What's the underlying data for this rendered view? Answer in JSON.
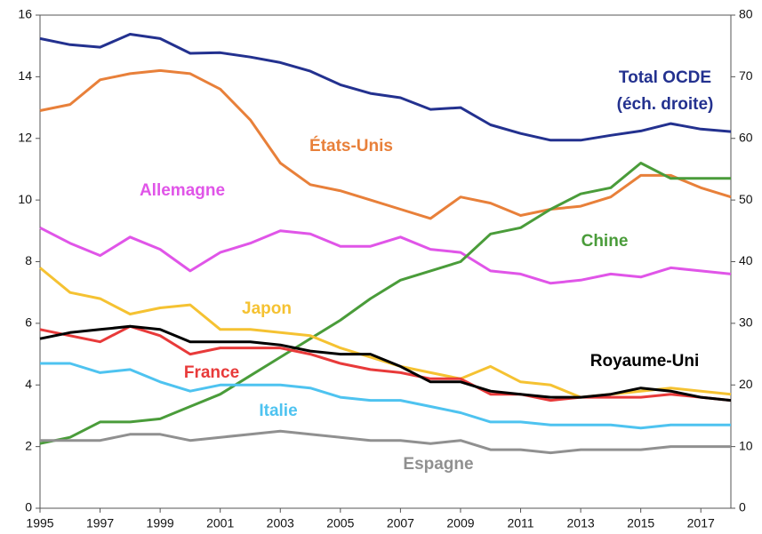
{
  "chart_data": {
    "type": "line",
    "x": [
      1995,
      1996,
      1997,
      1998,
      1999,
      2000,
      2001,
      2002,
      2003,
      2004,
      2005,
      2006,
      2007,
      2008,
      2009,
      2010,
      2011,
      2012,
      2013,
      2014,
      2015,
      2016,
      2017,
      2018
    ],
    "xlim": [
      1995,
      2018
    ],
    "xticks": [
      1995,
      1997,
      1999,
      2001,
      2003,
      2005,
      2007,
      2009,
      2011,
      2013,
      2015,
      2017
    ],
    "ylim": [
      0,
      16
    ],
    "yticks": [
      0,
      2,
      4,
      6,
      8,
      10,
      12,
      14,
      16
    ],
    "y2lim": [
      0,
      80
    ],
    "y2ticks": [
      0,
      10,
      20,
      30,
      40,
      50,
      60,
      70,
      80
    ],
    "grid": false,
    "series": [
      {
        "name": "Total OCDE",
        "note": "(éch. droite)",
        "axis": "y2",
        "color": "#23318f",
        "values": [
          76.2,
          75.2,
          74.8,
          76.9,
          76.2,
          73.8,
          73.9,
          73.2,
          72.3,
          70.9,
          68.7,
          67.3,
          66.6,
          64.7,
          65.0,
          62.2,
          60.8,
          59.7,
          59.7,
          60.5,
          61.2,
          62.4,
          61.5,
          61.1
        ]
      },
      {
        "name": "États-Unis",
        "color": "#e8803a",
        "values": [
          12.9,
          13.1,
          13.9,
          14.1,
          14.2,
          14.1,
          13.6,
          12.6,
          11.2,
          10.5,
          10.3,
          10.0,
          9.7,
          9.4,
          10.1,
          9.9,
          9.5,
          9.7,
          9.8,
          10.1,
          10.8,
          10.8,
          10.4,
          10.1
        ]
      },
      {
        "name": "Allemagne",
        "color": "#e055e8",
        "values": [
          9.1,
          8.6,
          8.2,
          8.8,
          8.4,
          7.7,
          8.3,
          8.6,
          9.0,
          8.9,
          8.5,
          8.5,
          8.8,
          8.4,
          8.3,
          7.7,
          7.6,
          7.3,
          7.4,
          7.6,
          7.5,
          7.8,
          7.7,
          7.6
        ]
      },
      {
        "name": "Chine",
        "color": "#4a9c3a",
        "values": [
          2.1,
          2.3,
          2.8,
          2.8,
          2.9,
          3.3,
          3.7,
          4.3,
          4.9,
          5.5,
          6.1,
          6.8,
          7.4,
          7.7,
          8.0,
          8.9,
          9.1,
          9.7,
          10.2,
          10.4,
          11.2,
          10.7,
          10.7,
          10.7
        ]
      },
      {
        "name": "Japon",
        "color": "#f5c232",
        "values": [
          7.8,
          7.0,
          6.8,
          6.3,
          6.5,
          6.6,
          5.8,
          5.8,
          5.7,
          5.6,
          5.2,
          4.9,
          4.6,
          4.4,
          4.2,
          4.6,
          4.1,
          4.0,
          3.6,
          3.7,
          3.8,
          3.9,
          3.8,
          3.7
        ]
      },
      {
        "name": "France",
        "color": "#e83a3a",
        "values": [
          5.8,
          5.6,
          5.4,
          5.9,
          5.6,
          5.0,
          5.2,
          5.2,
          5.2,
          5.0,
          4.7,
          4.5,
          4.4,
          4.2,
          4.2,
          3.7,
          3.7,
          3.5,
          3.6,
          3.6,
          3.6,
          3.7,
          3.6,
          3.5
        ]
      },
      {
        "name": "Royaume-Uni",
        "color": "#000000",
        "values": [
          5.5,
          5.7,
          5.8,
          5.9,
          5.8,
          5.4,
          5.4,
          5.4,
          5.3,
          5.1,
          5.0,
          5.0,
          4.6,
          4.1,
          4.1,
          3.8,
          3.7,
          3.6,
          3.6,
          3.7,
          3.9,
          3.8,
          3.6,
          3.5
        ]
      },
      {
        "name": "Italie",
        "color": "#4ec3f0",
        "values": [
          4.7,
          4.7,
          4.4,
          4.5,
          4.1,
          3.8,
          4.0,
          4.0,
          4.0,
          3.9,
          3.6,
          3.5,
          3.5,
          3.3,
          3.1,
          2.8,
          2.8,
          2.7,
          2.7,
          2.7,
          2.6,
          2.7,
          2.7,
          2.7
        ]
      },
      {
        "name": "Espagne",
        "color": "#909090",
        "values": [
          2.2,
          2.2,
          2.2,
          2.4,
          2.4,
          2.2,
          2.3,
          2.4,
          2.5,
          2.4,
          2.3,
          2.2,
          2.2,
          2.1,
          2.2,
          1.9,
          1.9,
          1.8,
          1.9,
          1.9,
          1.9,
          2.0,
          2.0,
          2.0
        ]
      }
    ]
  }
}
